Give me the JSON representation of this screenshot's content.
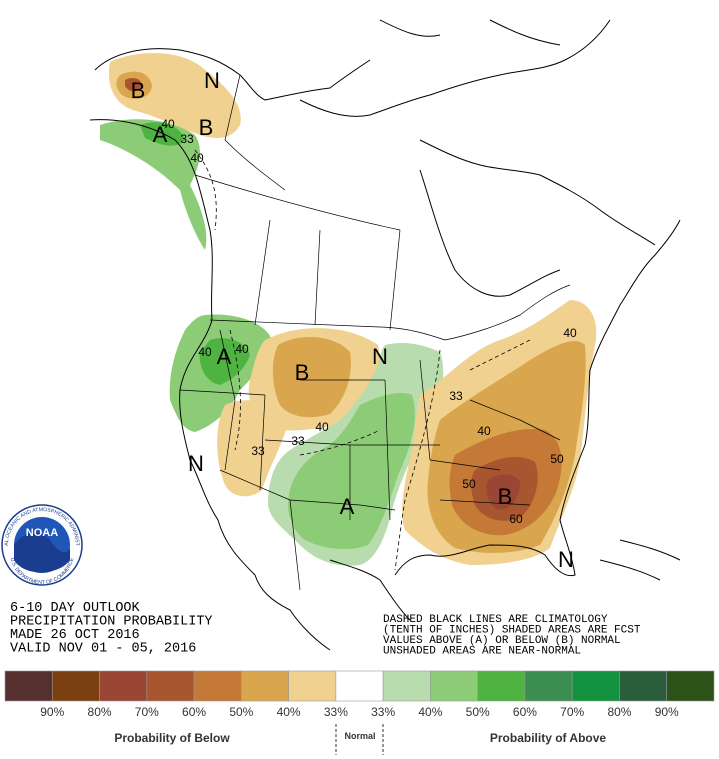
{
  "title_block": {
    "lines": [
      "6-10 DAY OUTLOOK",
      "PRECIPITATION PROBABILITY",
      "MADE  26 OCT 2016",
      "VALID  NOV 01 - 05, 2016"
    ]
  },
  "note": {
    "lines": [
      "DASHED BLACK LINES ARE CLIMATOLOGY",
      "(TENTH OF INCHES) SHADED AREAS ARE FCST",
      "VALUES ABOVE (A) OR BELOW (B) NORMAL",
      "UNSHADED AREAS ARE NEAR-NORMAL"
    ]
  },
  "logo": {
    "name": "NOAA",
    "ring_top": "NATIONAL OCEANIC AND ATMOSPHERIC ADMINISTRATION",
    "ring_bottom": "U.S. DEPARTMENT OF COMMERCE"
  },
  "map_labels": [
    "B",
    "N",
    "A",
    "B",
    "40",
    "33",
    "40",
    "40",
    "A",
    "40",
    "B",
    "N",
    "40",
    "33",
    "33",
    "N",
    "A",
    "33",
    "40",
    "50",
    "B",
    "50",
    "60",
    "N",
    "40"
  ],
  "legend": {
    "colors": [
      "#55302e",
      "#7b3f10",
      "#9a4634",
      "#a8562f",
      "#c47a36",
      "#d9a64d",
      "#f0d18f",
      "#ffffff",
      "#b8dcae",
      "#8dcc77",
      "#4fb342",
      "#3b8d50",
      "#12923f",
      "#2a5d3b",
      "#2d5219"
    ],
    "labels": [
      "90%",
      "80%",
      "70%",
      "60%",
      "50%",
      "40%",
      "33%",
      "33%",
      "40%",
      "50%",
      "60%",
      "70%",
      "80%",
      "90%"
    ],
    "below": "Probability of Below",
    "normal": "Normal",
    "above": "Probability of Above"
  }
}
